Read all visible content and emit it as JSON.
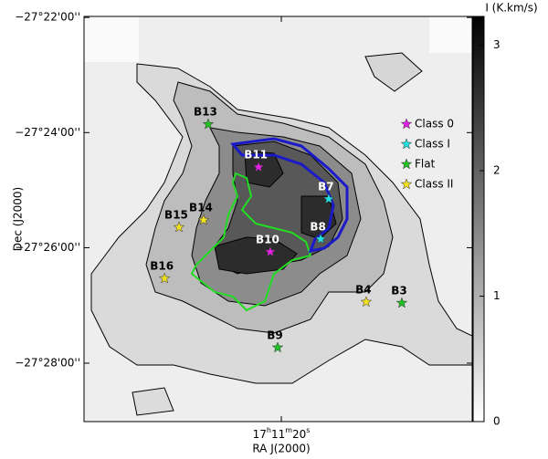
{
  "chart_data": {
    "type": "scatter",
    "x_label": "RA J(2000)",
    "y_label": "Dec (J2000)",
    "xlim": [
      257.8975,
      257.7712
    ],
    "ylim": [
      -27.4836,
      -27.3664
    ],
    "xticks": [
      {
        "value": 257.8333,
        "label": "17h11m20s"
      }
    ],
    "yticks": [
      {
        "value": -27.3667,
        "label": "−27°22'00''"
      },
      {
        "value": -27.4,
        "label": "−27°24'00''"
      },
      {
        "value": -27.4333,
        "label": "−27°26'00''"
      },
      {
        "value": -27.4667,
        "label": "−27°28'00''"
      }
    ],
    "colorbar": {
      "label": "I (K.km/s)",
      "clim": [
        0,
        3.23
      ],
      "ticks": [
        0,
        1,
        2,
        3
      ]
    },
    "legend": "upper right",
    "series": [
      {
        "name": "Class 0",
        "color": "#e020e0",
        "label_color": "#ffffff",
        "labels": [
          "B11",
          "B10"
        ],
        "x": [
          257.8407,
          257.8369
        ],
        "y": [
          -27.41,
          -27.4345
        ]
      },
      {
        "name": "Class I",
        "color": "#20e0e0",
        "label_color": "#ffffff",
        "labels": [
          "B7",
          "B8"
        ],
        "x": [
          257.8179,
          257.8205
        ],
        "y": [
          -27.4192,
          -27.4308
        ]
      },
      {
        "name": "Flat",
        "color": "#22c022",
        "label_color": "#000000",
        "labels": [
          "B13",
          "B3",
          "B9"
        ],
        "x": [
          257.8571,
          257.7941,
          257.8345
        ],
        "y": [
          -27.3976,
          -27.4493,
          -27.4622
        ]
      },
      {
        "name": "Class II",
        "color": "#f0e020",
        "label_color": "#000000",
        "labels": [
          "B14",
          "B15",
          "B16",
          "B4"
        ],
        "x": [
          257.8586,
          257.8666,
          257.8713,
          257.8057
        ],
        "y": [
          -27.4253,
          -27.4274,
          -27.4422,
          -27.449
        ]
      }
    ]
  }
}
